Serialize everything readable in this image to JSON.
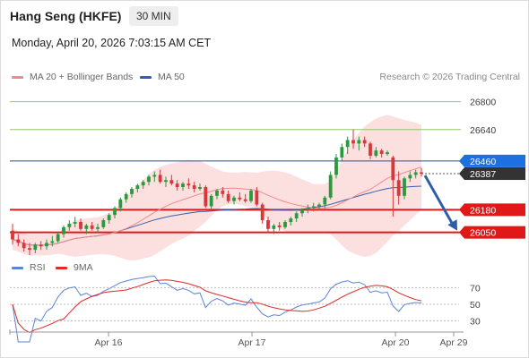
{
  "header": {
    "title": "Hang Seng (HKFE)",
    "timeframe": "30 MIN",
    "datetime": "Monday, April 20, 2026 7:03:15 AM CET"
  },
  "legend": {
    "bb_label": "MA 20 + Bollinger Bands",
    "ma50_label": "MA 50",
    "credit": "Research © 2026 Trading Central",
    "rsi_label": "RSI",
    "rsi_ma_label": "9MA"
  },
  "colors": {
    "up": "#2a9a3c",
    "down": "#d8363a",
    "bb_fill": "#fbd6d6",
    "ma20": "#f08a8a",
    "ma50": "#3a5fa8",
    "support": "#e11818",
    "resistance": "#8fc86a",
    "pivot": "#1e6fe0",
    "current": "#333333",
    "arrow": "#2f5ea8",
    "rsi": "#5b86d6",
    "rsi_ma": "#e02a2a"
  },
  "chart_data": [
    {
      "type": "candlestick",
      "x_labels": [
        "Apr 16",
        "Apr 17",
        "Apr 20",
        "Apr 29"
      ],
      "ylim": [
        25920,
        26870
      ],
      "levels": [
        {
          "label": "26800",
          "value": 26800,
          "kind": "resistance"
        },
        {
          "label": "26640",
          "value": 26640,
          "kind": "resistance"
        },
        {
          "label": "26460",
          "value": 26460,
          "kind": "pivot"
        },
        {
          "label": "26387",
          "value": 26387,
          "kind": "current"
        },
        {
          "label": "26180",
          "value": 26180,
          "kind": "support"
        },
        {
          "label": "26050",
          "value": 26050,
          "kind": "support"
        }
      ],
      "forecast": {
        "from": 26387,
        "to": 26050
      },
      "candles": [
        [
          26060,
          26100,
          25980,
          26010
        ],
        [
          26010,
          26040,
          25970,
          25990
        ],
        [
          25990,
          26010,
          25940,
          25960
        ],
        [
          25960,
          25990,
          25920,
          25950
        ],
        [
          25950,
          25990,
          25930,
          25980
        ],
        [
          25980,
          26000,
          25950,
          25970
        ],
        [
          25970,
          26010,
          25950,
          25990
        ],
        [
          25990,
          26030,
          25970,
          26000
        ],
        [
          26000,
          26050,
          25990,
          26040
        ],
        [
          26040,
          26090,
          26020,
          26080
        ],
        [
          26080,
          26120,
          26060,
          26100
        ],
        [
          26100,
          26140,
          26080,
          26110
        ],
        [
          26110,
          26130,
          26060,
          26070
        ],
        [
          26070,
          26100,
          26040,
          26090
        ],
        [
          26090,
          26110,
          26060,
          26070
        ],
        [
          26070,
          26100,
          26050,
          26080
        ],
        [
          26080,
          26130,
          26070,
          26120
        ],
        [
          26120,
          26160,
          26100,
          26150
        ],
        [
          26150,
          26200,
          26130,
          26190
        ],
        [
          26190,
          26250,
          26170,
          26240
        ],
        [
          26240,
          26280,
          26220,
          26270
        ],
        [
          26270,
          26310,
          26250,
          26300
        ],
        [
          26300,
          26330,
          26280,
          26320
        ],
        [
          26320,
          26350,
          26300,
          26340
        ],
        [
          26340,
          26380,
          26320,
          26370
        ],
        [
          26370,
          26400,
          26340,
          26380
        ],
        [
          26380,
          26410,
          26330,
          26340
        ],
        [
          26340,
          26370,
          26310,
          26350
        ],
        [
          26350,
          26380,
          26320,
          26330
        ],
        [
          26330,
          26350,
          26290,
          26310
        ],
        [
          26310,
          26340,
          26290,
          26330
        ],
        [
          26330,
          26360,
          26300,
          26320
        ],
        [
          26320,
          26340,
          26280,
          26300
        ],
        [
          26300,
          26330,
          26290,
          26310
        ],
        [
          26310,
          26320,
          26190,
          26200
        ],
        [
          26200,
          26270,
          26180,
          26260
        ],
        [
          26260,
          26300,
          26240,
          26290
        ],
        [
          26290,
          26310,
          26250,
          26270
        ],
        [
          26270,
          26290,
          26220,
          26230
        ],
        [
          26230,
          26260,
          26210,
          26250
        ],
        [
          26250,
          26280,
          26230,
          26240
        ],
        [
          26240,
          26270,
          26220,
          26230
        ],
        [
          26230,
          26300,
          26220,
          26290
        ],
        [
          26290,
          26310,
          26200,
          26210
        ],
        [
          26210,
          26220,
          26100,
          26120
        ],
        [
          26120,
          26140,
          26050,
          26070
        ],
        [
          26070,
          26100,
          26040,
          26090
        ],
        [
          26090,
          26110,
          26060,
          26080
        ],
        [
          26080,
          26120,
          26070,
          26110
        ],
        [
          26110,
          26140,
          26090,
          26130
        ],
        [
          26130,
          26170,
          26110,
          26160
        ],
        [
          26160,
          26190,
          26140,
          26180
        ],
        [
          26180,
          26210,
          26160,
          26190
        ],
        [
          26190,
          26220,
          26170,
          26200
        ],
        [
          26200,
          26220,
          26180,
          26210
        ],
        [
          26210,
          26260,
          26190,
          26250
        ],
        [
          26250,
          26400,
          26240,
          26380
        ],
        [
          26380,
          26500,
          26360,
          26480
        ],
        [
          26480,
          26560,
          26460,
          26540
        ],
        [
          26540,
          26600,
          26500,
          26580
        ],
        [
          26580,
          26640,
          26530,
          26560
        ],
        [
          26560,
          26600,
          26520,
          26580
        ],
        [
          26580,
          26600,
          26540,
          26560
        ],
        [
          26560,
          26570,
          26470,
          26490
        ],
        [
          26490,
          26540,
          26480,
          26520
        ],
        [
          26520,
          26530,
          26480,
          26500
        ],
        [
          26500,
          26520,
          26490,
          26510
        ],
        [
          26480,
          26490,
          26140,
          26350
        ],
        [
          26350,
          26400,
          26210,
          26260
        ],
        [
          26260,
          26370,
          26240,
          26360
        ],
        [
          26360,
          26400,
          26340,
          26380
        ],
        [
          26380,
          26410,
          26360,
          26395
        ],
        [
          26395,
          26420,
          26370,
          26387
        ]
      ]
    },
    {
      "type": "line",
      "name": "RSI",
      "yticks": [
        70,
        50,
        30
      ],
      "ylim": [
        20,
        80
      ]
    }
  ]
}
